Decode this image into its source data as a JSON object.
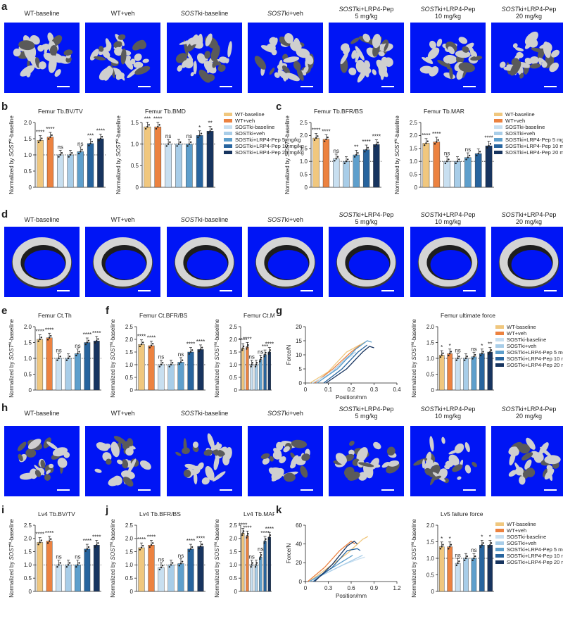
{
  "groups": [
    {
      "pre": "WT-baseline",
      "italic": "",
      "mid": "",
      "dose": ""
    },
    {
      "pre": "WT+veh",
      "italic": "",
      "mid": "",
      "dose": ""
    },
    {
      "pre": "",
      "italic": "SOST",
      "mid": "ki-baseline",
      "dose": ""
    },
    {
      "pre": "",
      "italic": "SOST",
      "mid": "ki+veh",
      "dose": ""
    },
    {
      "pre": "",
      "italic": "SOST",
      "mid": "ki+LRP4-Pep",
      "dose": "5 mg/kg"
    },
    {
      "pre": "",
      "italic": "SOST",
      "mid": "ki+LRP4-Pep",
      "dose": "10 mg/kg"
    },
    {
      "pre": "",
      "italic": "SOST",
      "mid": "ki+LRP4-Pep",
      "dose": "20 mg/kg"
    }
  ],
  "legend_entries": [
    "WT-baseline",
    "WT+veh",
    "SOSTki-baseline",
    "SOSTki+veh",
    "SOSTki+LRP4-Pep 5 mg/kg",
    "SOSTki+LRP4-Pep 10 mg/kg",
    "SOSTki+LRP4-Pep 20 mg/kg"
  ],
  "colors": [
    "#f0c77e",
    "#ec8240",
    "#c8dff0",
    "#a8cde8",
    "#5e9fcc",
    "#27649e",
    "#17345f"
  ],
  "panel_labels": [
    "a",
    "b",
    "c",
    "d",
    "e",
    "f",
    "g",
    "h",
    "i",
    "j",
    "k"
  ],
  "ylabel_text": "Normalized by SOSTki-baseline",
  "ylabel_parts": {
    "pre": "Normalized by ",
    "italic": "SOST",
    "sup": "ki",
    "post": "-baseline"
  },
  "chart_data": [
    {
      "id": "b1",
      "type": "bar",
      "title": "Femur Tb.BV/TV",
      "ylim": [
        0,
        2.0
      ],
      "yticks": [
        "0",
        "0.5",
        "1.0",
        "1.5",
        "2.0"
      ],
      "values": [
        1.45,
        1.55,
        1.0,
        1.0,
        1.1,
        1.35,
        1.5
      ],
      "sig": [
        "****",
        "****",
        "ns",
        "",
        "ns",
        "***",
        "****"
      ]
    },
    {
      "id": "b2",
      "type": "bar",
      "title": "Femur Tb.BMD",
      "ylim": [
        0,
        1.5
      ],
      "yticks": [
        "0",
        "0.5",
        "1.0",
        "1.5"
      ],
      "values": [
        1.4,
        1.4,
        1.0,
        1.0,
        1.0,
        1.2,
        1.3
      ],
      "sig": [
        "***",
        "****",
        "ns",
        "",
        "ns",
        "*",
        "**"
      ]
    },
    {
      "id": "c1",
      "type": "bar",
      "title": "Femur Tb.BFR/BS",
      "ylim": [
        0,
        2.5
      ],
      "yticks": [
        "0",
        "0.5",
        "1.0",
        "1.5",
        "2.0",
        "2.5"
      ],
      "values": [
        1.9,
        1.85,
        1.1,
        1.0,
        1.25,
        1.45,
        1.65
      ],
      "sig": [
        "****",
        "****",
        "ns",
        "",
        "**",
        "****",
        "****"
      ]
    },
    {
      "id": "c2",
      "type": "bar",
      "title": "Femur Tb.MAR",
      "ylim": [
        0,
        2.5
      ],
      "yticks": [
        "0",
        "0.5",
        "1.0",
        "1.5",
        "2.0",
        "2.5"
      ],
      "values": [
        1.7,
        1.75,
        1.0,
        1.0,
        1.15,
        1.3,
        1.6
      ],
      "sig": [
        "****",
        "****",
        "ns",
        "",
        "ns",
        "",
        "****"
      ]
    },
    {
      "id": "e1",
      "type": "bar",
      "title": "Femur Ct.Th",
      "ylim": [
        0,
        2.0
      ],
      "yticks": [
        "0",
        "0.5",
        "1.0",
        "1.5",
        "2.0"
      ],
      "values": [
        1.6,
        1.65,
        1.0,
        1.0,
        1.15,
        1.5,
        1.55
      ],
      "sig": [
        "****",
        "****",
        "ns",
        "",
        "ns",
        "****",
        "****"
      ]
    },
    {
      "id": "f1",
      "type": "bar",
      "title": "Femur Ct.BFR/BS",
      "ylim": [
        0,
        2.5
      ],
      "yticks": [
        "0",
        "0.5",
        "1.0",
        "1.5",
        "2.0",
        "2.5"
      ],
      "values": [
        1.8,
        1.75,
        1.0,
        1.0,
        1.1,
        1.5,
        1.6
      ],
      "sig": [
        "****",
        "****",
        "ns",
        "",
        "ns",
        "****",
        "****"
      ]
    },
    {
      "id": "f2",
      "type": "bar",
      "title": "Femur Ct.MAR",
      "ylim": [
        0,
        2.5
      ],
      "yticks": [
        "0",
        "0.5",
        "1.0",
        "1.5",
        "2.0",
        "2.5"
      ],
      "values": [
        1.65,
        1.7,
        1.0,
        1.0,
        1.2,
        1.4,
        1.5
      ],
      "sig": [
        "****",
        "****",
        "ns",
        "",
        "ns",
        "***",
        "****"
      ]
    },
    {
      "id": "g2",
      "type": "bar",
      "title": "Femur ultimate force",
      "ylim": [
        0,
        2.0
      ],
      "yticks": [
        "0",
        "0.5",
        "1.0",
        "1.5",
        "2.0"
      ],
      "values": [
        1.1,
        1.15,
        1.0,
        1.0,
        1.05,
        1.15,
        1.2
      ],
      "sig": [
        "*",
        "*",
        "ns",
        "",
        "ns",
        "*",
        "**"
      ]
    },
    {
      "id": "i1",
      "type": "bar",
      "title": "Lv4 Tb.BV/TV",
      "ylim": [
        0,
        2.5
      ],
      "yticks": [
        "0",
        "0.5",
        "1.0",
        "1.5",
        "2.0",
        "2.5"
      ],
      "values": [
        1.85,
        1.9,
        1.0,
        1.0,
        1.0,
        1.6,
        1.75
      ],
      "sig": [
        "****",
        "****",
        "ns",
        "",
        "ns",
        "****",
        "****"
      ]
    },
    {
      "id": "j1",
      "type": "bar",
      "title": "Lv4 Tb.BFR/BS",
      "ylim": [
        0,
        2.5
      ],
      "yticks": [
        "0",
        "0.5",
        "1.0",
        "1.5",
        "2.0",
        "2.5"
      ],
      "values": [
        1.65,
        1.75,
        0.9,
        1.0,
        1.05,
        1.6,
        1.7
      ],
      "sig": [
        "****",
        "****",
        "ns",
        "",
        "ns",
        "****",
        "****"
      ]
    },
    {
      "id": "j2",
      "type": "bar",
      "title": "Lv4 Tb.MAR",
      "ylim": [
        0,
        2.5
      ],
      "yticks": [
        "0",
        "0.5",
        "1.0",
        "1.5",
        "2.0",
        "2.5"
      ],
      "values": [
        2.2,
        2.1,
        1.0,
        1.0,
        1.3,
        1.9,
        2.05
      ],
      "sig": [
        "****",
        "****",
        "ns",
        "",
        "ns",
        "****",
        "****"
      ]
    },
    {
      "id": "k2",
      "type": "bar",
      "title": "Lv5 failure force",
      "ylim": [
        0,
        2.0
      ],
      "yticks": [
        "0",
        "0.5",
        "1.0",
        "1.5",
        "2.0"
      ],
      "values": [
        1.35,
        1.35,
        0.85,
        1.0,
        1.0,
        1.4,
        1.4
      ],
      "sig": [
        "*",
        "*",
        "ns",
        "",
        "ns",
        "*",
        "*"
      ]
    },
    {
      "id": "g1",
      "type": "line",
      "title": "",
      "xlabel": "Position/mm",
      "ylabel": "Force/N",
      "xlim": [
        0,
        0.4
      ],
      "ylim": [
        0,
        20
      ],
      "xticks": [
        "0",
        "0.1",
        "0.2",
        "0.3",
        "0.4"
      ],
      "yticks": [
        "0",
        "5",
        "10",
        "15",
        "20"
      ],
      "series": [
        {
          "points": [
            [
              0.02,
              0
            ],
            [
              0.1,
              4
            ],
            [
              0.18,
              11
            ],
            [
              0.26,
              14.5
            ]
          ]
        },
        {
          "points": [
            [
              0.04,
              0
            ],
            [
              0.12,
              5
            ],
            [
              0.2,
              11
            ],
            [
              0.24,
              13.5
            ]
          ]
        },
        {
          "points": [
            [
              0.03,
              0
            ],
            [
              0.1,
              3
            ],
            [
              0.17,
              8
            ],
            [
              0.21,
              10
            ]
          ]
        },
        {
          "points": [
            [
              0.05,
              0
            ],
            [
              0.12,
              4
            ],
            [
              0.18,
              9
            ],
            [
              0.22,
              11
            ]
          ]
        },
        {
          "points": [
            [
              0.05,
              0
            ],
            [
              0.14,
              5
            ],
            [
              0.22,
              12
            ],
            [
              0.27,
              15
            ],
            [
              0.29,
              14.5
            ]
          ]
        },
        {
          "points": [
            [
              0.08,
              0
            ],
            [
              0.16,
              5
            ],
            [
              0.23,
              11
            ],
            [
              0.27,
              13.5
            ]
          ]
        },
        {
          "points": [
            [
              0.09,
              0
            ],
            [
              0.18,
              5
            ],
            [
              0.25,
              11
            ],
            [
              0.28,
              13
            ],
            [
              0.3,
              12.5
            ]
          ]
        }
      ]
    },
    {
      "id": "k1",
      "type": "line",
      "title": "",
      "xlabel": "Position/mm",
      "ylabel": "Force/N",
      "xlim": [
        0,
        1.2
      ],
      "ylim": [
        0,
        60
      ],
      "xticks": [
        "0",
        "0.3",
        "0.6",
        "0.9",
        "1.2"
      ],
      "yticks": [
        "0",
        "20",
        "40",
        "60"
      ],
      "series": [
        {
          "points": [
            [
              0.05,
              0
            ],
            [
              0.3,
              15
            ],
            [
              0.55,
              30
            ],
            [
              0.75,
              45
            ],
            [
              0.82,
              48
            ]
          ]
        },
        {
          "points": [
            [
              0.03,
              0
            ],
            [
              0.25,
              15
            ],
            [
              0.45,
              33
            ],
            [
              0.6,
              43
            ],
            [
              0.65,
              40
            ]
          ]
        },
        {
          "points": [
            [
              0.05,
              0
            ],
            [
              0.3,
              10
            ],
            [
              0.5,
              18
            ],
            [
              0.7,
              24
            ],
            [
              0.78,
              26
            ]
          ]
        },
        {
          "points": [
            [
              0.05,
              0
            ],
            [
              0.3,
              10
            ],
            [
              0.55,
              20
            ],
            [
              0.75,
              28
            ]
          ]
        },
        {
          "points": [
            [
              0.05,
              0
            ],
            [
              0.3,
              12
            ],
            [
              0.5,
              22
            ],
            [
              0.62,
              28
            ]
          ]
        },
        {
          "points": [
            [
              0.1,
              0
            ],
            [
              0.35,
              15
            ],
            [
              0.55,
              33
            ],
            [
              0.68,
              35
            ],
            [
              0.72,
              33
            ]
          ]
        },
        {
          "points": [
            [
              0.12,
              0
            ],
            [
              0.35,
              18
            ],
            [
              0.55,
              38
            ],
            [
              0.64,
              43
            ],
            [
              0.68,
              40
            ]
          ]
        }
      ]
    }
  ]
}
